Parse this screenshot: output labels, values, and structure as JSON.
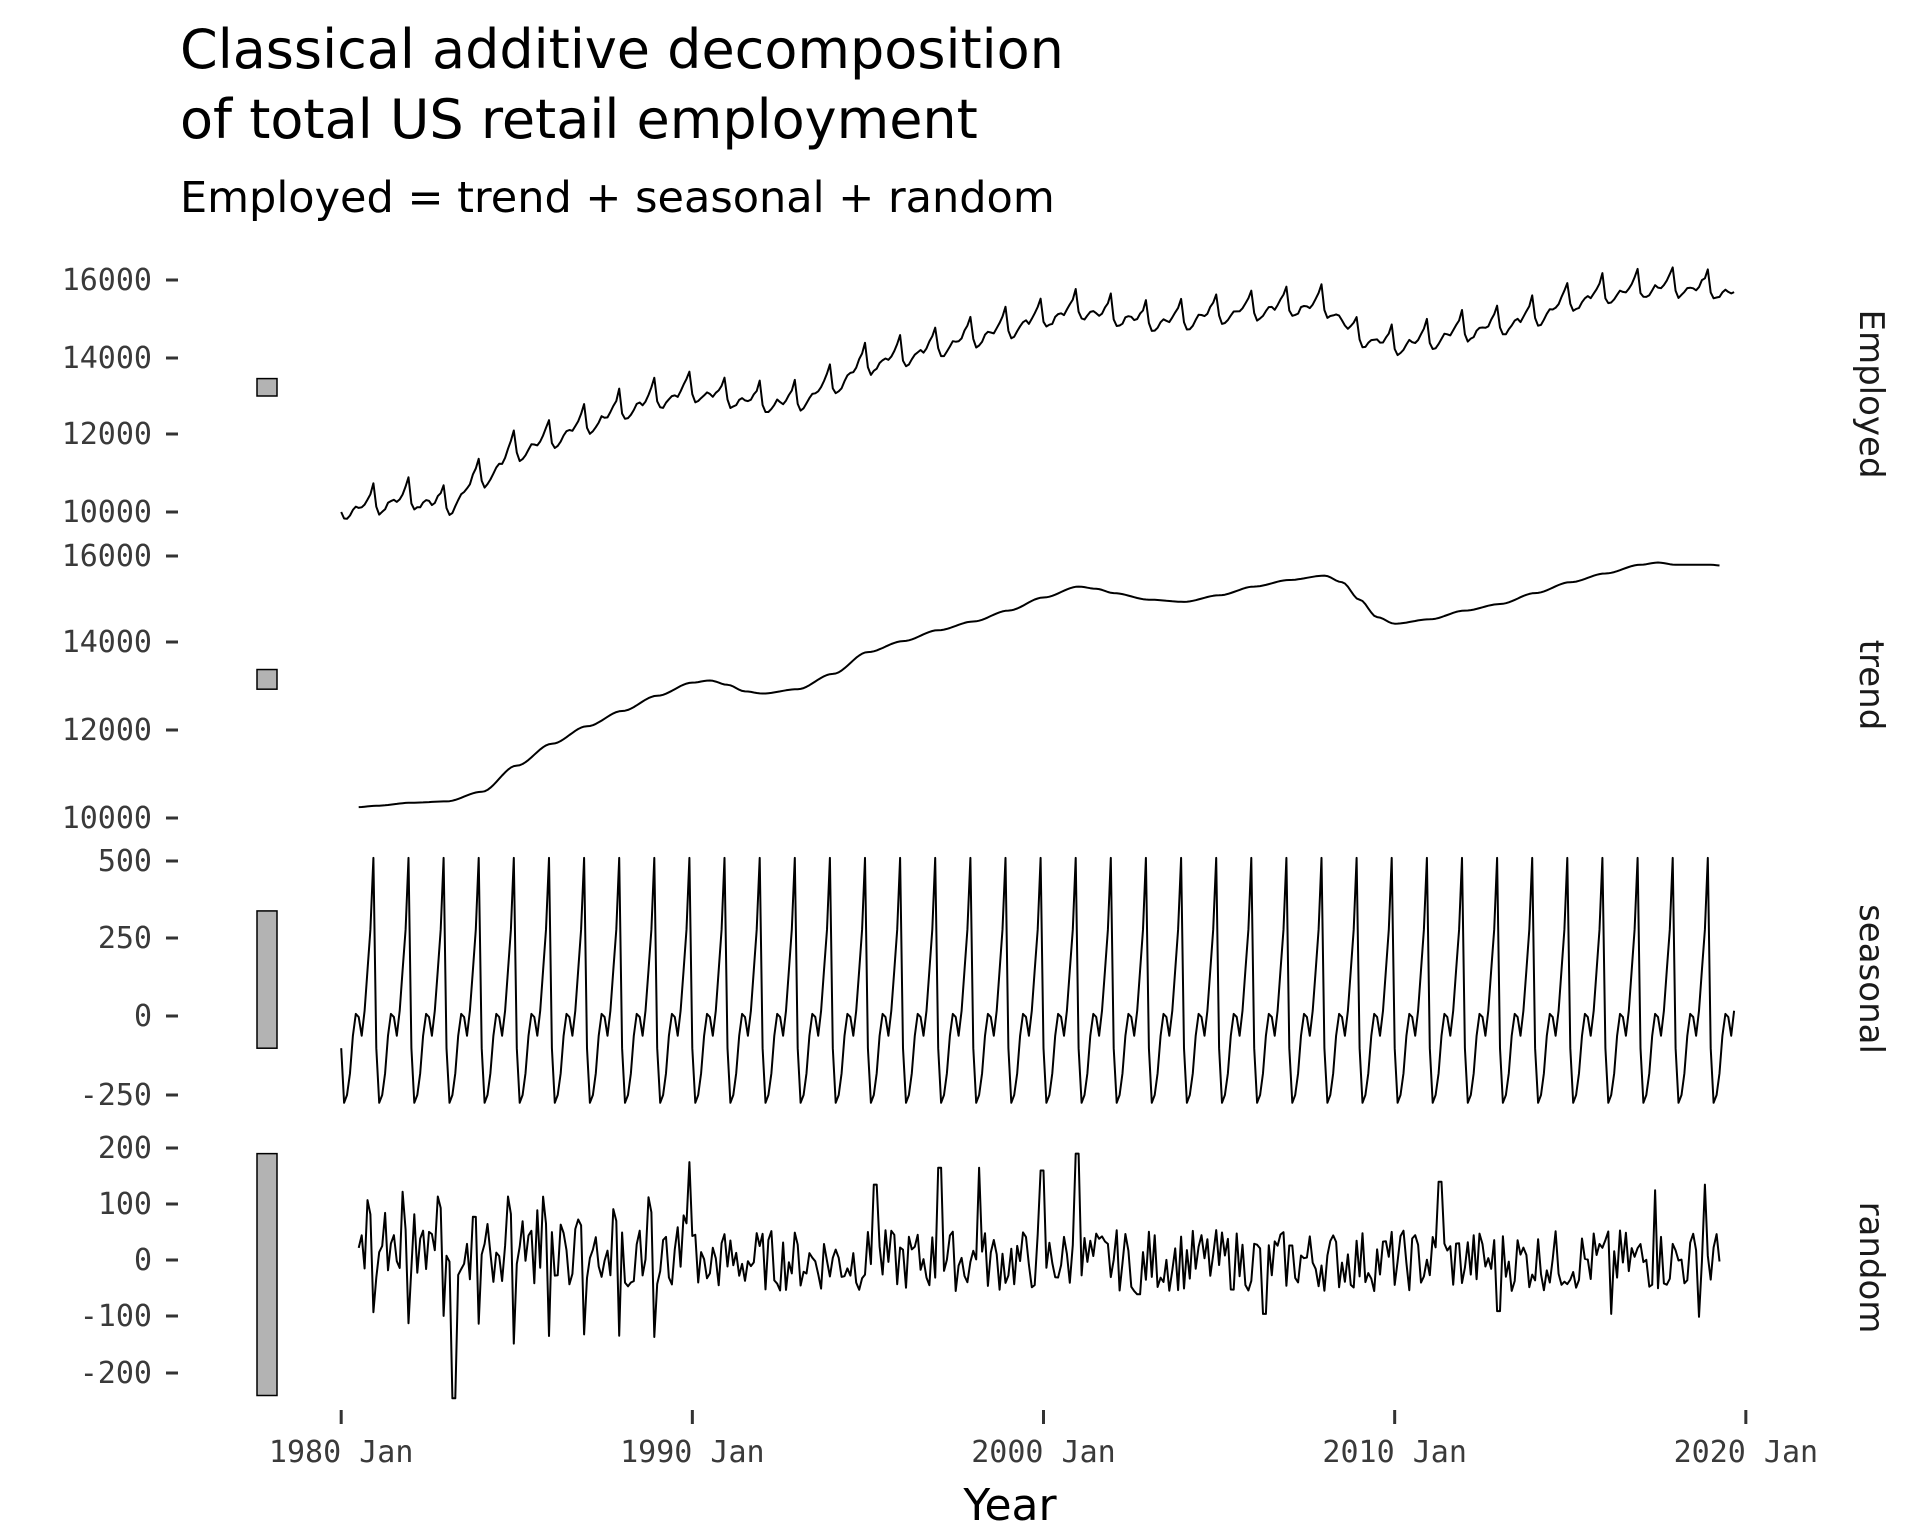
{
  "chart_data": {
    "type": "line",
    "title": "Classical additive decomposition\n of total US retail employment",
    "subtitle": "Employed = trend + seasonal + random",
    "xlabel": "Year",
    "x_range": [
      "1980 Jan",
      "2019 Sep"
    ],
    "x_ticks": [
      "1980 Jan",
      "1990 Jan",
      "2000 Jan",
      "2010 Jan",
      "2020 Jan"
    ],
    "grid": false,
    "legend": "none",
    "panels": [
      {
        "name": "Employed",
        "ylim": [
          10000,
          16500
        ],
        "y_ticks": [
          "10000",
          "12000",
          "14000",
          "16000"
        ],
        "anchors": [
          [
            1980.0,
            10100
          ],
          [
            1982.0,
            10350
          ],
          [
            1983.0,
            10200
          ],
          [
            1984.0,
            10900
          ],
          [
            1985.0,
            11600
          ],
          [
            1986.0,
            11900
          ],
          [
            1987.0,
            12300
          ],
          [
            1988.0,
            12650
          ],
          [
            1989.0,
            12950
          ],
          [
            1990.0,
            13150
          ],
          [
            1991.0,
            13000
          ],
          [
            1992.0,
            12850
          ],
          [
            1993.0,
            12900
          ],
          [
            1994.0,
            13300
          ],
          [
            1995.0,
            13850
          ],
          [
            1996.0,
            14050
          ],
          [
            1997.0,
            14300
          ],
          [
            1998.0,
            14550
          ],
          [
            1999.0,
            14800
          ],
          [
            2000.0,
            15050
          ],
          [
            2001.0,
            15250
          ],
          [
            2002.0,
            15100
          ],
          [
            2003.0,
            14950
          ],
          [
            2004.0,
            15000
          ],
          [
            2005.0,
            15150
          ],
          [
            2006.0,
            15250
          ],
          [
            2007.0,
            15350
          ],
          [
            2008.0,
            15350
          ],
          [
            2009.0,
            14550
          ],
          [
            2010.0,
            14350
          ],
          [
            2011.0,
            14500
          ],
          [
            2012.0,
            14700
          ],
          [
            2013.0,
            14850
          ],
          [
            2014.0,
            15100
          ],
          [
            2015.0,
            15450
          ],
          [
            2016.0,
            15650
          ],
          [
            2017.0,
            15800
          ],
          [
            2018.0,
            15850
          ],
          [
            2019.0,
            15800
          ],
          [
            2019.75,
            15700
          ]
        ],
        "seasonal_amplitude": 1.0
      },
      {
        "name": "trend",
        "ylim": [
          10000,
          16000
        ],
        "y_ticks": [
          "10000",
          "12000",
          "14000",
          "16000"
        ],
        "anchors": [
          [
            1980.5,
            10250
          ],
          [
            1981.0,
            10280
          ],
          [
            1982.0,
            10350
          ],
          [
            1983.0,
            10380
          ],
          [
            1984.0,
            10600
          ],
          [
            1985.0,
            11200
          ],
          [
            1986.0,
            11700
          ],
          [
            1987.0,
            12100
          ],
          [
            1988.0,
            12450
          ],
          [
            1989.0,
            12800
          ],
          [
            1990.0,
            13100
          ],
          [
            1990.5,
            13150
          ],
          [
            1991.0,
            13050
          ],
          [
            1991.5,
            12900
          ],
          [
            1992.0,
            12850
          ],
          [
            1993.0,
            12950
          ],
          [
            1994.0,
            13300
          ],
          [
            1995.0,
            13800
          ],
          [
            1996.0,
            14050
          ],
          [
            1997.0,
            14300
          ],
          [
            1998.0,
            14500
          ],
          [
            1999.0,
            14750
          ],
          [
            2000.0,
            15050
          ],
          [
            2001.0,
            15300
          ],
          [
            2001.5,
            15250
          ],
          [
            2002.0,
            15150
          ],
          [
            2003.0,
            15000
          ],
          [
            2004.0,
            14950
          ],
          [
            2005.0,
            15100
          ],
          [
            2006.0,
            15300
          ],
          [
            2007.0,
            15450
          ],
          [
            2008.0,
            15550
          ],
          [
            2008.5,
            15400
          ],
          [
            2009.0,
            15000
          ],
          [
            2009.5,
            14600
          ],
          [
            2010.0,
            14450
          ],
          [
            2011.0,
            14550
          ],
          [
            2012.0,
            14750
          ],
          [
            2013.0,
            14900
          ],
          [
            2014.0,
            15150
          ],
          [
            2015.0,
            15400
          ],
          [
            2016.0,
            15600
          ],
          [
            2017.0,
            15800
          ],
          [
            2017.5,
            15850
          ],
          [
            2018.0,
            15800
          ],
          [
            2019.0,
            15800
          ],
          [
            2019.3,
            15780
          ]
        ]
      },
      {
        "name": "seasonal",
        "ylim": [
          -270,
          510
        ],
        "y_ticks": [
          "-250",
          "0",
          "250",
          "500"
        ],
        "monthly_values": [
          -100,
          -275,
          -250,
          -180,
          -60,
          10,
          0,
          -60,
          20,
          150,
          280,
          510
        ],
        "start_month_index": 0,
        "end": 2019.67
      },
      {
        "name": "random",
        "ylim": [
          -250,
          200
        ],
        "y_ticks": [
          "-200",
          "-100",
          "0",
          "100",
          "200"
        ],
        "start": 1980.5,
        "end": 2019.3,
        "noise_amplitude_early": 130,
        "noise_amplitude_late": 55,
        "regime_change": 1990.5,
        "peak_events": [
          [
            1983.2,
            -245
          ],
          [
            1989.9,
            175
          ],
          [
            2000.95,
            190
          ],
          [
            1995.2,
            135
          ],
          [
            1997.05,
            165
          ],
          [
            1998.15,
            165
          ],
          [
            1999.95,
            160
          ],
          [
            2002.7,
            -60
          ],
          [
            2006.3,
            -95
          ],
          [
            2011.3,
            140
          ],
          [
            2012.95,
            -90
          ],
          [
            2016.15,
            -95
          ],
          [
            2017.4,
            125
          ],
          [
            2018.65,
            -100
          ],
          [
            2018.85,
            135
          ]
        ]
      }
    ]
  }
}
